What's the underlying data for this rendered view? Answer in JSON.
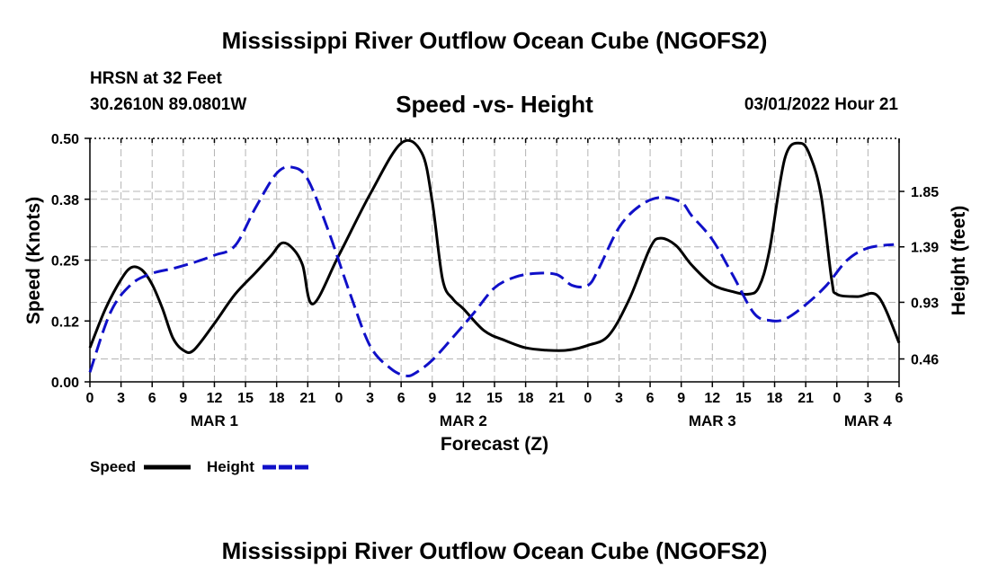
{
  "title": "Mississippi River Outflow Ocean Cube (NGOFS2)",
  "footer_title": "Mississippi River Outflow Ocean Cube (NGOFS2)",
  "station": "HRSN at 32 Feet",
  "coordinates": "30.2610N  89.0801W",
  "subtitle": "Speed -vs- Height",
  "datestamp": "03/01/2022 Hour 21",
  "colors": {
    "speed": "#000000",
    "height": "#1010c8",
    "grid": "#b4b4b4"
  },
  "chart_data": {
    "type": "line",
    "xlabel": "Forecast (Z)",
    "ylabel": "Speed (Knots)",
    "y2label": "Height (feet)",
    "xlim": [
      0,
      78
    ],
    "ylim": [
      0,
      0.5
    ],
    "y2lim": [
      0.27,
      2.29
    ],
    "x_ticks": [
      0,
      3,
      6,
      9,
      12,
      15,
      18,
      21,
      24,
      27,
      30,
      33,
      36,
      39,
      42,
      45,
      48,
      51,
      54,
      57,
      60,
      63,
      66,
      69,
      72,
      75,
      78
    ],
    "x_tick_labels": [
      "0",
      "3",
      "6",
      "9",
      "12",
      "15",
      "18",
      "21",
      "0",
      "3",
      "6",
      "9",
      "12",
      "15",
      "18",
      "21",
      "0",
      "3",
      "6",
      "9",
      "12",
      "15",
      "18",
      "21",
      "0",
      "3",
      "6"
    ],
    "day_labels": [
      {
        "x": 12,
        "label": "MAR 1"
      },
      {
        "x": 36,
        "label": "MAR 2"
      },
      {
        "x": 60,
        "label": "MAR 3"
      },
      {
        "x": 75,
        "label": "MAR 4"
      }
    ],
    "y_ticks": [
      0.0,
      0.125,
      0.25,
      0.375,
      0.5
    ],
    "y_tick_labels": [
      "0.00",
      "0.12",
      "0.25",
      "0.38",
      "0.50"
    ],
    "y2_ticks": [
      0.46,
      0.93,
      1.39,
      1.85
    ],
    "y2_tick_labels": [
      "0.46",
      "0.93",
      "1.39",
      "1.85"
    ],
    "legend": [
      {
        "name": "Speed",
        "style": "solid"
      },
      {
        "name": "Height",
        "style": "dashed"
      }
    ],
    "series": [
      {
        "name": "Speed",
        "axis": "left",
        "x": [
          0,
          1.5,
          3,
          4,
          5,
          6,
          7,
          8,
          9,
          10,
          12,
          14,
          16,
          17.5,
          18.5,
          19.5,
          20.5,
          21.5,
          24,
          27,
          30,
          32,
          33,
          34,
          35,
          36,
          38,
          40,
          42,
          44,
          46,
          48,
          50,
          52,
          54,
          55,
          56.5,
          58,
          60,
          62,
          63.5,
          64.5,
          65.5,
          67,
          68.5,
          69.5,
          70.5,
          71.5,
          72,
          74,
          76,
          78
        ],
        "values": [
          0.07,
          0.15,
          0.21,
          0.235,
          0.23,
          0.2,
          0.15,
          0.09,
          0.065,
          0.065,
          0.12,
          0.18,
          0.225,
          0.26,
          0.285,
          0.275,
          0.24,
          0.16,
          0.26,
          0.385,
          0.49,
          0.47,
          0.37,
          0.21,
          0.17,
          0.15,
          0.105,
          0.085,
          0.07,
          0.065,
          0.065,
          0.075,
          0.095,
          0.17,
          0.275,
          0.295,
          0.28,
          0.24,
          0.2,
          0.185,
          0.18,
          0.195,
          0.27,
          0.46,
          0.49,
          0.46,
          0.38,
          0.21,
          0.18,
          0.175,
          0.175,
          0.08
        ]
      },
      {
        "name": "Height",
        "axis": "right",
        "x": [
          0,
          2,
          4,
          6,
          8,
          10,
          12,
          14,
          16,
          18,
          19.5,
          21,
          23,
          25,
          27,
          29,
          30.5,
          31.5,
          33,
          35,
          37,
          39,
          41,
          43,
          45,
          46.5,
          48,
          49,
          51,
          53,
          55,
          57,
          58,
          60,
          62,
          64,
          65.5,
          67,
          69,
          71,
          73,
          75,
          77.5
        ],
        "values": [
          0.35,
          0.85,
          1.08,
          1.17,
          1.21,
          1.26,
          1.32,
          1.4,
          1.72,
          2.0,
          2.05,
          1.95,
          1.52,
          1.02,
          0.57,
          0.38,
          0.32,
          0.35,
          0.45,
          0.64,
          0.84,
          1.05,
          1.14,
          1.17,
          1.16,
          1.07,
          1.07,
          1.2,
          1.55,
          1.73,
          1.8,
          1.76,
          1.65,
          1.45,
          1.15,
          0.84,
          0.78,
          0.79,
          0.91,
          1.07,
          1.28,
          1.38,
          1.41
        ]
      }
    ]
  }
}
